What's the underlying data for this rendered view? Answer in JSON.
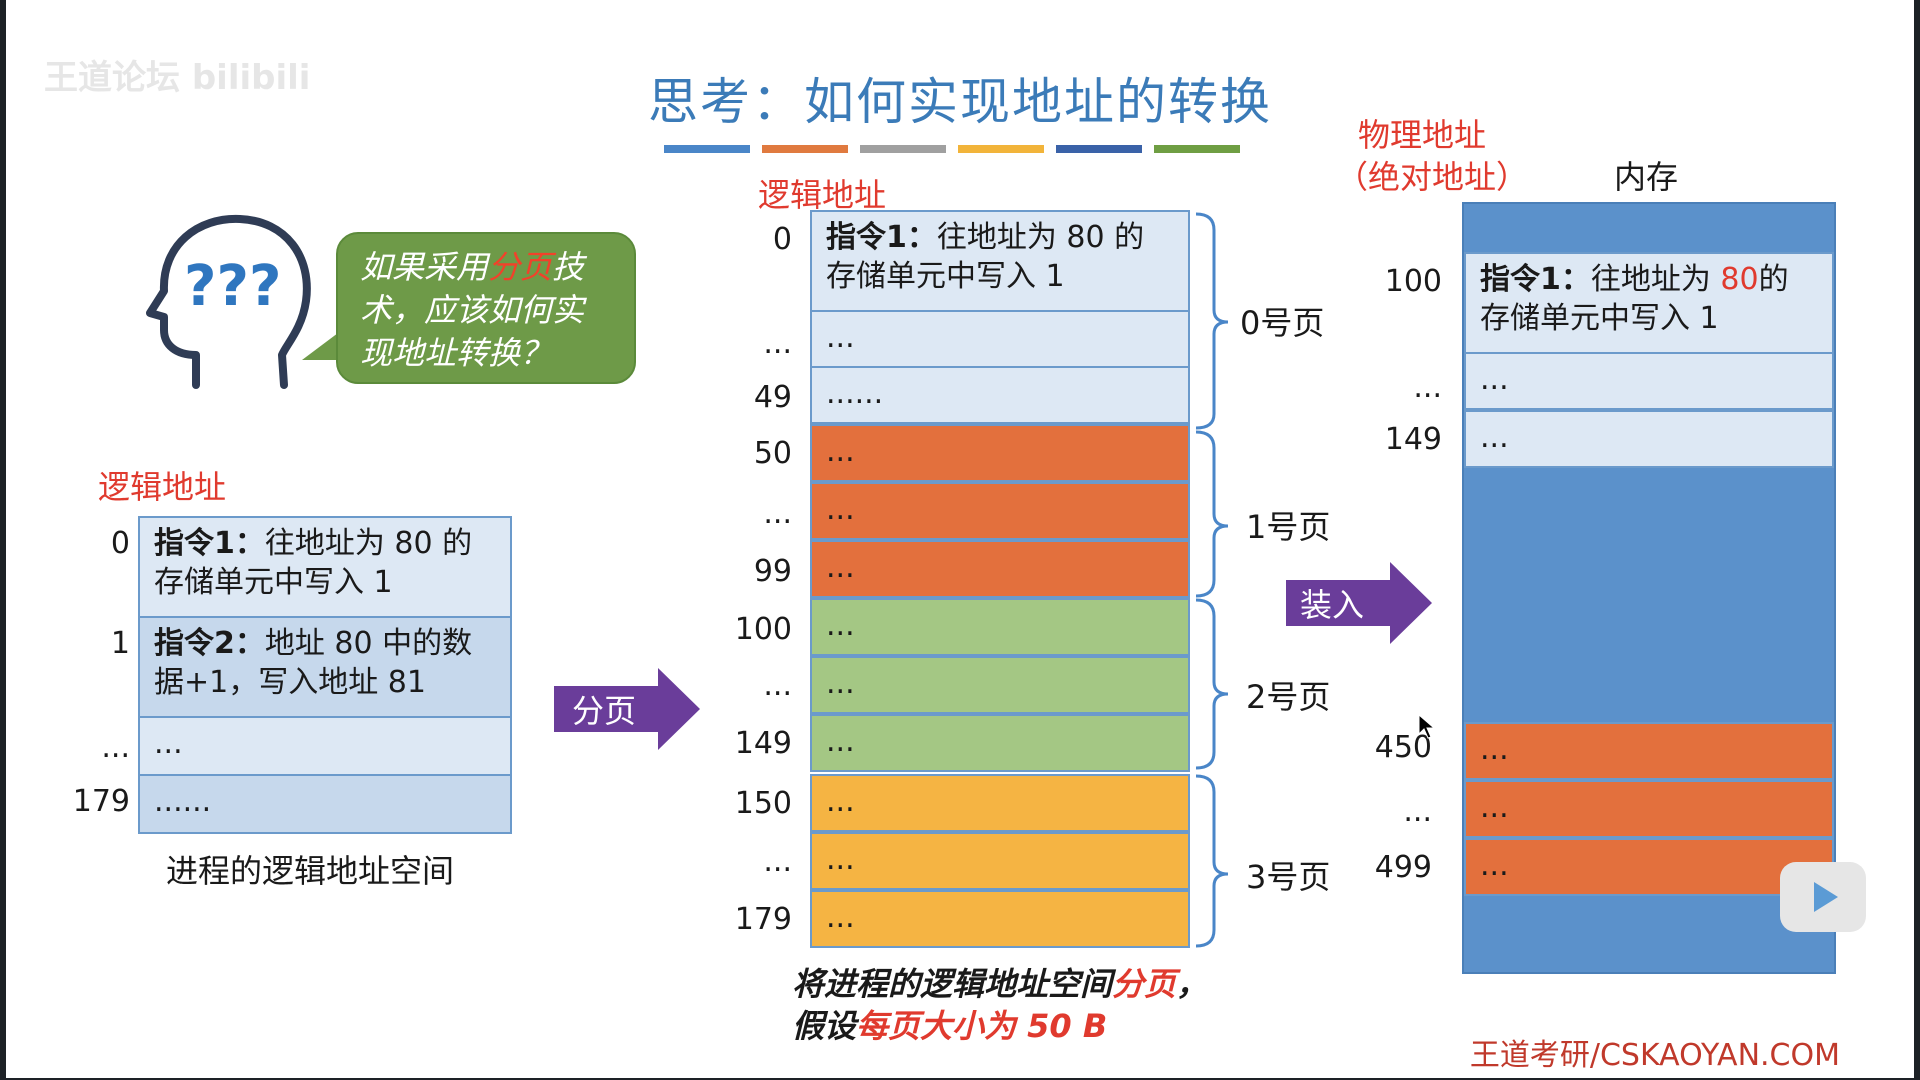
{
  "watermark": "王道论坛 bilibili",
  "title": "思考：如何实现地址的转换",
  "title_bar_colors": [
    "#4a86c8",
    "#e07a3f",
    "#a0a0a0",
    "#f2b43a",
    "#3a62a8",
    "#6f9e43"
  ],
  "bubble": {
    "prefix": "如果采用",
    "highlight": "分页",
    "suffix": "技术，应该如何实现地址转换？"
  },
  "left": {
    "heading": "逻辑地址",
    "rows": [
      {
        "addr": "0",
        "bold": "指令1：",
        "text": "往地址为 80 的存储单元中写入 1"
      },
      {
        "addr": "1",
        "bold": "指令2：",
        "text": "地址 80 中的数据+1，写入地址 81"
      },
      {
        "addr": "...",
        "bold": "",
        "text": "..."
      },
      {
        "addr": "179",
        "bold": "",
        "text": "......"
      }
    ],
    "caption": "进程的逻辑地址空间"
  },
  "arrow_page": "分页",
  "middle": {
    "heading": "逻辑地址",
    "rows": [
      {
        "addr": "0",
        "bold": "指令1：",
        "text": "往地址为 80 的存储单元中写入 1"
      },
      {
        "addr": "...",
        "text": "..."
      },
      {
        "addr": "49",
        "text": "......"
      },
      {
        "addr": "50",
        "text": "..."
      },
      {
        "addr": "...",
        "text": "..."
      },
      {
        "addr": "99",
        "text": "..."
      },
      {
        "addr": "100",
        "text": "..."
      },
      {
        "addr": "...",
        "text": "..."
      },
      {
        "addr": "149",
        "text": "..."
      },
      {
        "addr": "150",
        "text": "..."
      },
      {
        "addr": "...",
        "text": "..."
      },
      {
        "addr": "179",
        "text": "..."
      }
    ],
    "pages": [
      "0号页",
      "1号页",
      "2号页",
      "3号页"
    ],
    "caption_1": "将进程的逻辑地址空间",
    "caption_red_1": "分页",
    "caption_2": "，假设",
    "caption_red_2": "每页大小为 50 B"
  },
  "arrow_load": "装入",
  "right": {
    "heading_line1": "物理地址",
    "heading_line2": "（绝对地址）",
    "memory_label": "内存",
    "rows": [
      {
        "addr": "100",
        "bold": "指令1：",
        "text": "往地址为 ",
        "red": "80",
        "text2": "的存储单元中写入 1"
      },
      {
        "addr": "...",
        "text": "..."
      },
      {
        "addr": "149",
        "text": "..."
      },
      {
        "addr": "450",
        "text": "..."
      },
      {
        "addr": "...",
        "text": "..."
      },
      {
        "addr": "499",
        "text": "..."
      }
    ]
  },
  "footer": "王道考研/CSKAOYAN.COM"
}
